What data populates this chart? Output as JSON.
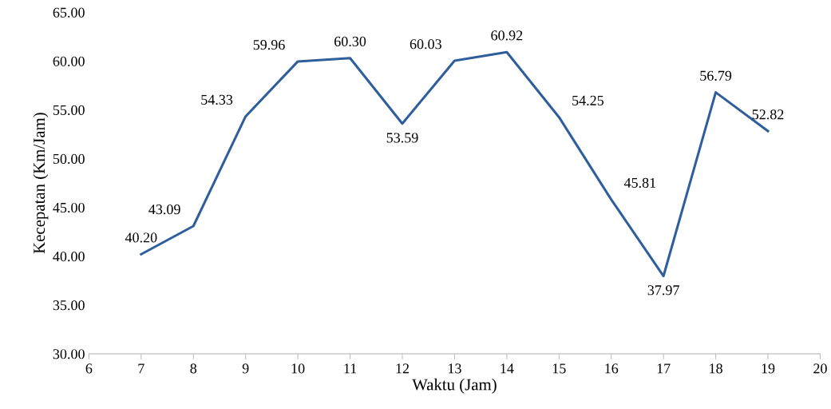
{
  "chart_data": {
    "type": "line",
    "xlabel": "Waktu (Jam)",
    "ylabel": "Kecepatan (Km/Jam)",
    "x": [
      7,
      8,
      9,
      10,
      11,
      12,
      13,
      14,
      15,
      16,
      17,
      18,
      19
    ],
    "series": [
      {
        "color": "#2e5f9c",
        "values": [
          40.2,
          43.09,
          54.33,
          59.96,
          60.3,
          53.59,
          60.03,
          60.92,
          54.25,
          45.81,
          37.97,
          56.79,
          52.82
        ]
      }
    ],
    "value_labels": [
      "40.20",
      "43.09",
      "54.33",
      "59.96",
      "60.30",
      "53.59",
      "60.03",
      "60.92",
      "54.25",
      "45.81",
      "37.97",
      "56.79",
      "52.82"
    ],
    "xlim": [
      6,
      20
    ],
    "xticks": [
      6,
      7,
      8,
      9,
      10,
      11,
      12,
      13,
      14,
      15,
      16,
      17,
      18,
      19,
      20
    ],
    "ylim": [
      30,
      65
    ],
    "yticks": [
      {
        "value": 30,
        "label": "30.00"
      },
      {
        "value": 35,
        "label": "35.00"
      },
      {
        "value": 40,
        "label": "40.00"
      },
      {
        "value": 45,
        "label": "45.00"
      },
      {
        "value": 50,
        "label": "50.00"
      },
      {
        "value": 55,
        "label": "55.00"
      },
      {
        "value": 60,
        "label": "60.00"
      },
      {
        "value": 65,
        "label": "65.00"
      }
    ],
    "grid": false,
    "legend": false,
    "marker": "none",
    "line_style": "solid"
  }
}
